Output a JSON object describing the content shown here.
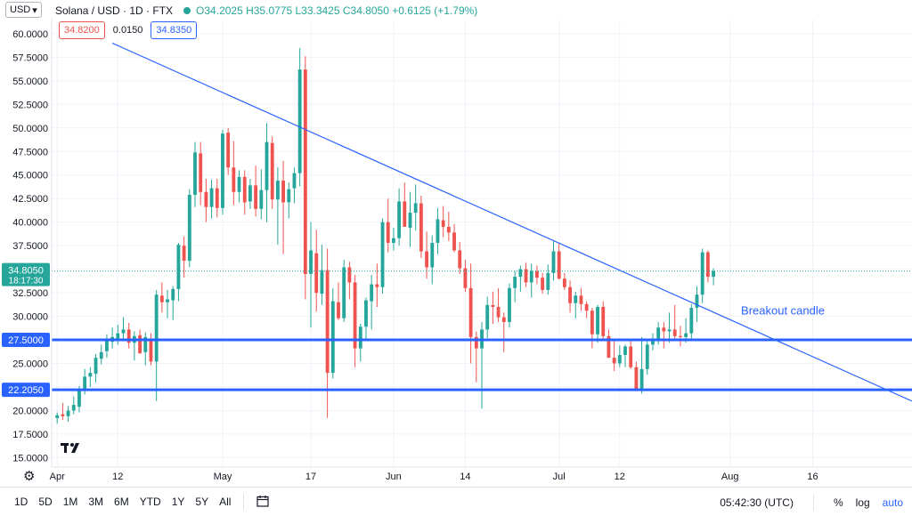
{
  "header": {
    "currency": "USD",
    "symbol_title": "Solana / USD · 1D · FTX",
    "ohlc": "O34.2025 H35.0775 L33.3425 C34.8050 +0.6125 (+1.79%)",
    "sell_price": "34.8200",
    "spread": "0.0150",
    "buy_price": "34.8350"
  },
  "bottom_bar": {
    "ranges": [
      "1D",
      "5D",
      "1M",
      "3M",
      "6M",
      "YTD",
      "1Y",
      "5Y",
      "All"
    ],
    "time": "05:42:30 (UTC)",
    "percent": "%",
    "log": "log",
    "auto": "auto"
  },
  "colors": {
    "up": "#26a69a",
    "down": "#ef5350",
    "trendline": "#2962ff",
    "support": "#2962ff",
    "annotation": "#2962ff"
  },
  "chart_data": {
    "type": "candlestick",
    "title": "Solana / USD · 1D · FTX",
    "y_ticks": [
      "60.0000",
      "57.5000",
      "55.0000",
      "52.5000",
      "50.0000",
      "47.5000",
      "45.0000",
      "42.5000",
      "40.0000",
      "37.5000",
      "35.0000",
      "32.5000",
      "30.0000",
      "27.5000",
      "25.0000",
      "22.5000",
      "20.0000",
      "17.5000",
      "15.0000"
    ],
    "x_ticks": [
      "Apr",
      "12",
      "May",
      "17",
      "Jun",
      "14",
      "Jul",
      "12",
      "Aug",
      "16"
    ],
    "x_tick_days": [
      0,
      11,
      30,
      46,
      61,
      74,
      91,
      102,
      122,
      137
    ],
    "ylim": [
      14.0,
      61.5
    ],
    "xlim": [
      -1,
      155
    ],
    "last_price": {
      "value": 34.805,
      "label": "34.8050",
      "countdown": "18:17:30"
    },
    "support_levels": [
      {
        "value": 27.5,
        "label": "27.5000"
      },
      {
        "value": 22.205,
        "label": "22.2050"
      }
    ],
    "trendline": {
      "x1": 10,
      "y1": 59.0,
      "x2": 155,
      "y2": 21.0
    },
    "annotation": {
      "text": "Breakout candle",
      "x": 124,
      "y": 30.2
    },
    "candles": [
      [
        19.2,
        19.8,
        18.6,
        19.5
      ],
      [
        19.6,
        20.8,
        19.0,
        19.4
      ],
      [
        19.4,
        20.5,
        18.8,
        20.0
      ],
      [
        20.0,
        21.5,
        19.6,
        20.6
      ],
      [
        20.4,
        22.6,
        19.8,
        22.2
      ],
      [
        22.1,
        24.4,
        21.7,
        23.6
      ],
      [
        23.6,
        24.6,
        22.5,
        24.0
      ],
      [
        23.9,
        26.0,
        23.0,
        25.6
      ],
      [
        25.5,
        27.0,
        24.9,
        26.2
      ],
      [
        26.3,
        28.1,
        25.6,
        27.4
      ],
      [
        27.3,
        28.8,
        26.6,
        27.8
      ],
      [
        27.6,
        29.1,
        27.0,
        28.2
      ],
      [
        28.2,
        29.9,
        27.4,
        28.6
      ],
      [
        28.6,
        29.3,
        26.6,
        27.2
      ],
      [
        27.2,
        28.4,
        25.3,
        27.9
      ],
      [
        28.0,
        28.6,
        26.0,
        26.1
      ],
      [
        26.2,
        28.3,
        24.8,
        27.8
      ],
      [
        27.6,
        28.2,
        24.8,
        25.2
      ],
      [
        25.2,
        32.8,
        21.0,
        32.3
      ],
      [
        32.2,
        33.6,
        30.4,
        31.5
      ],
      [
        31.5,
        32.8,
        29.8,
        31.8
      ],
      [
        31.7,
        33.2,
        29.6,
        32.9
      ],
      [
        32.9,
        37.8,
        31.6,
        37.6
      ],
      [
        37.5,
        38.5,
        34.1,
        35.9
      ],
      [
        35.9,
        43.5,
        35.2,
        42.9
      ],
      [
        42.9,
        48.5,
        41.6,
        47.4
      ],
      [
        47.3,
        48.5,
        41.8,
        43.2
      ],
      [
        43.2,
        44.6,
        40.0,
        41.6
      ],
      [
        41.6,
        44.5,
        40.4,
        43.6
      ],
      [
        43.6,
        44.6,
        40.5,
        41.5
      ],
      [
        41.5,
        49.8,
        40.8,
        49.4
      ],
      [
        49.5,
        50.0,
        45.0,
        45.8
      ],
      [
        45.8,
        48.6,
        41.8,
        43.2
      ],
      [
        43.2,
        45.5,
        42.1,
        44.8
      ],
      [
        44.8,
        45.5,
        40.8,
        42.1
      ],
      [
        42.2,
        44.6,
        41.4,
        43.9
      ],
      [
        43.9,
        46.0,
        40.6,
        41.4
      ],
      [
        41.4,
        45.6,
        40.3,
        43.4
      ],
      [
        43.4,
        50.5,
        40.0,
        48.5
      ],
      [
        48.4,
        49.1,
        41.4,
        42.4
      ],
      [
        42.4,
        45.8,
        37.6,
        44.4
      ],
      [
        44.4,
        46.5,
        36.6,
        42.1
      ],
      [
        42.1,
        44.2,
        40.4,
        43.5
      ],
      [
        43.6,
        45.8,
        42.0,
        45.2
      ],
      [
        45.2,
        58.5,
        43.8,
        56.2
      ],
      [
        56.2,
        57.6,
        31.8,
        34.5
      ],
      [
        34.5,
        40.0,
        28.8,
        37.0
      ],
      [
        36.7,
        39.2,
        30.5,
        32.5
      ],
      [
        32.4,
        37.6,
        31.2,
        34.9
      ],
      [
        34.9,
        37.2,
        19.2,
        24.0
      ],
      [
        24.0,
        33.0,
        23.4,
        31.6
      ],
      [
        31.5,
        33.6,
        29.6,
        29.8
      ],
      [
        29.8,
        36.0,
        29.4,
        35.2
      ],
      [
        35.2,
        35.8,
        31.8,
        33.6
      ],
      [
        33.6,
        34.4,
        24.6,
        26.6
      ],
      [
        26.6,
        29.2,
        25.2,
        28.9
      ],
      [
        28.9,
        32.0,
        27.4,
        31.7
      ],
      [
        31.6,
        34.4,
        28.6,
        33.4
      ],
      [
        33.4,
        35.6,
        31.0,
        33.1
      ],
      [
        33.1,
        40.4,
        32.4,
        40.0
      ],
      [
        40.0,
        42.5,
        36.8,
        37.8
      ],
      [
        37.8,
        39.4,
        37.0,
        38.3
      ],
      [
        38.3,
        43.6,
        37.5,
        42.2
      ],
      [
        42.2,
        44.2,
        39.6,
        39.5
      ],
      [
        39.4,
        43.2,
        37.4,
        41.0
      ],
      [
        41.0,
        44.0,
        39.1,
        42.0
      ],
      [
        42.0,
        42.8,
        36.2,
        36.9
      ],
      [
        36.9,
        39.0,
        34.0,
        35.2
      ],
      [
        35.2,
        38.6,
        33.4,
        37.8
      ],
      [
        37.8,
        41.5,
        36.6,
        40.3
      ],
      [
        40.2,
        41.7,
        38.4,
        39.5
      ],
      [
        39.5,
        41.1,
        38.0,
        38.9
      ],
      [
        38.9,
        39.8,
        36.8,
        37.0
      ],
      [
        37.0,
        37.9,
        34.5,
        35.1
      ],
      [
        35.1,
        36.0,
        32.6,
        33.0
      ],
      [
        33.0,
        35.6,
        25.0,
        27.8
      ],
      [
        27.8,
        28.4,
        23.0,
        26.6
      ],
      [
        26.6,
        29.4,
        20.2,
        28.6
      ],
      [
        28.6,
        32.1,
        27.7,
        31.2
      ],
      [
        31.2,
        32.6,
        29.2,
        31.0
      ],
      [
        31.0,
        33.0,
        29.4,
        29.9
      ],
      [
        29.9,
        30.4,
        26.2,
        29.4
      ],
      [
        29.4,
        33.5,
        28.8,
        33.0
      ],
      [
        33.0,
        34.8,
        31.5,
        34.2
      ],
      [
        34.2,
        35.4,
        32.6,
        35.0
      ],
      [
        35.0,
        35.7,
        33.1,
        33.6
      ],
      [
        33.6,
        35.6,
        32.0,
        34.8
      ],
      [
        34.8,
        35.4,
        33.4,
        34.1
      ],
      [
        34.1,
        34.6,
        32.4,
        32.8
      ],
      [
        32.8,
        35.5,
        32.3,
        34.6
      ],
      [
        34.6,
        38.0,
        33.8,
        36.9
      ],
      [
        36.9,
        37.8,
        33.9,
        34.0
      ],
      [
        34.0,
        34.6,
        32.8,
        33.1
      ],
      [
        33.1,
        33.8,
        30.4,
        31.4
      ],
      [
        31.4,
        32.6,
        29.8,
        32.2
      ],
      [
        32.2,
        33.0,
        30.6,
        31.3
      ],
      [
        31.3,
        31.6,
        29.8,
        30.6
      ],
      [
        30.6,
        30.9,
        26.6,
        28.1
      ],
      [
        28.1,
        31.2,
        27.2,
        31.0
      ],
      [
        31.0,
        31.6,
        27.6,
        27.9
      ],
      [
        27.9,
        28.6,
        26.0,
        25.6
      ],
      [
        25.6,
        27.6,
        24.2,
        25.0
      ],
      [
        25.0,
        26.9,
        24.6,
        25.9
      ],
      [
        25.9,
        27.0,
        24.6,
        26.8
      ],
      [
        26.8,
        27.4,
        24.4,
        24.6
      ],
      [
        24.6,
        25.2,
        22.4,
        22.3
      ],
      [
        22.3,
        27.8,
        21.8,
        24.4
      ],
      [
        24.4,
        27.6,
        23.8,
        27.0
      ],
      [
        27.0,
        28.2,
        26.4,
        27.6
      ],
      [
        27.6,
        29.4,
        27.0,
        28.8
      ],
      [
        28.8,
        29.4,
        26.6,
        28.4
      ],
      [
        28.4,
        30.4,
        27.2,
        28.6
      ],
      [
        28.6,
        31.2,
        27.4,
        27.9
      ],
      [
        27.9,
        29.0,
        26.8,
        27.8
      ],
      [
        27.8,
        29.8,
        27.2,
        28.2
      ],
      [
        28.2,
        31.3,
        27.4,
        30.9
      ],
      [
        30.9,
        33.2,
        29.4,
        32.3
      ],
      [
        32.3,
        37.2,
        31.4,
        36.8
      ],
      [
        36.8,
        37.0,
        33.6,
        34.2
      ],
      [
        34.2,
        35.1,
        33.3,
        34.8
      ]
    ]
  }
}
